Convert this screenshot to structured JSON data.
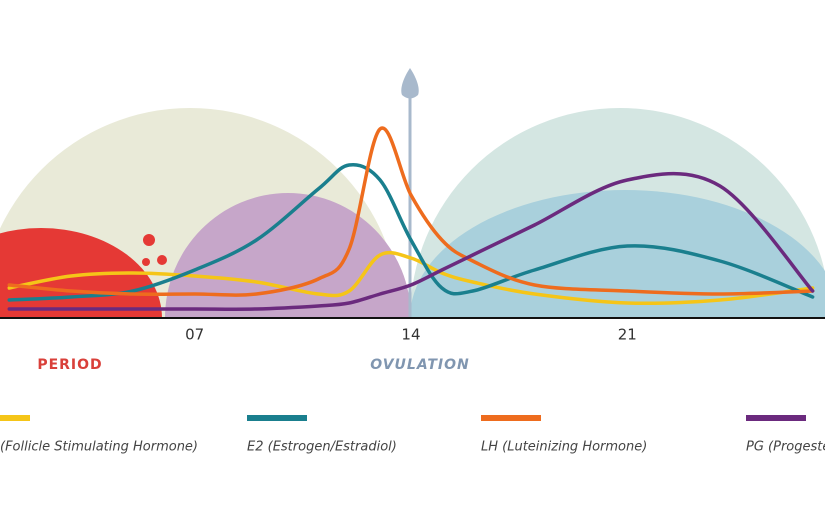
{
  "chart_data": {
    "type": "line",
    "x": [
      1,
      3,
      5,
      7,
      9,
      11,
      12,
      13,
      14,
      15,
      16,
      18,
      21,
      24,
      27
    ],
    "xlim": [
      0.7,
      27.4
    ],
    "xticks": [
      {
        "value": 7,
        "label": "07"
      },
      {
        "value": 14,
        "label": "14"
      },
      {
        "value": 21,
        "label": "21"
      }
    ],
    "ylim": [
      0,
      100
    ],
    "annotations": [
      "PERIOD",
      "OVULATION"
    ],
    "series": [
      {
        "name": "(Follicle Stimulating Hormone)",
        "color": "#f5c518",
        "values": [
          10,
          14,
          15,
          14,
          12,
          8,
          9,
          21,
          20,
          15,
          12,
          8,
          5,
          6,
          10
        ]
      },
      {
        "name": "E2 (Estrogen/Estradiol)",
        "color": "#1a7f8e",
        "values": [
          6,
          7,
          9,
          16,
          26,
          43,
          51,
          46,
          26,
          10,
          9,
          16,
          24,
          19,
          7
        ]
      },
      {
        "name": "LH (Luteinizing Hormone)",
        "color": "#ee6c1e",
        "values": [
          11,
          9,
          8,
          8,
          8,
          13,
          23,
          63,
          41,
          26,
          19,
          11,
          9,
          8,
          9
        ]
      },
      {
        "name": "PG (Progester",
        "color": "#6b2a7e",
        "values": [
          3,
          3,
          3,
          3,
          3,
          4,
          5,
          8,
          11,
          16,
          21,
          31,
          46,
          44,
          9
        ]
      }
    ]
  }
}
